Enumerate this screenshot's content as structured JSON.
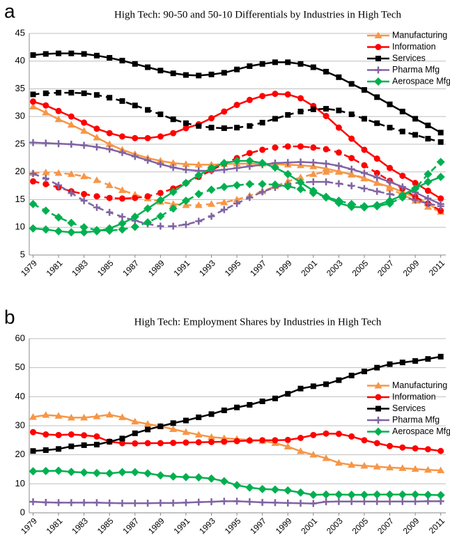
{
  "chart_data": [
    {
      "type": "line",
      "panel_label": "a",
      "title": "High Tech: 90-50 and 50-10 Differentials by Industries in High Tech",
      "x": [
        1979,
        1980,
        1981,
        1982,
        1983,
        1984,
        1985,
        1986,
        1987,
        1988,
        1989,
        1990,
        1991,
        1992,
        1993,
        1994,
        1995,
        1996,
        1997,
        1998,
        1999,
        2000,
        2001,
        2002,
        2003,
        2004,
        2005,
        2006,
        2007,
        2008,
        2009,
        2010,
        2011
      ],
      "xlim": [
        1978.7,
        2011.4
      ],
      "xticks": [
        1979,
        1981,
        1983,
        1985,
        1987,
        1989,
        1991,
        1993,
        1995,
        1997,
        1999,
        2001,
        2003,
        2005,
        2007,
        2009,
        2011
      ],
      "ylim": [
        5,
        45
      ],
      "yticks": [
        5,
        10,
        15,
        20,
        25,
        30,
        35,
        40,
        45
      ],
      "grid": true,
      "legend": "upper right",
      "series": [
        {
          "name": "Manufacturing",
          "color": "#f79646",
          "marker": "triangle",
          "values": [
            31.8,
            30.7,
            29.5,
            28.5,
            27.4,
            26.2,
            25.0,
            24.0,
            23.2,
            22.5,
            22.0,
            21.6,
            21.4,
            21.3,
            21.3,
            21.4,
            21.5,
            21.5,
            21.5,
            21.4,
            21.3,
            21.2,
            21.0,
            20.6,
            20.1,
            19.5,
            18.8,
            18.0,
            17.3,
            16.4,
            15.4,
            14.3,
            12.8
          ],
          "dashed_values": [
            19.8,
            19.9,
            19.8,
            19.6,
            19.2,
            18.5,
            17.6,
            16.7,
            15.9,
            15.2,
            14.6,
            14.2,
            14.0,
            14.0,
            14.2,
            14.5,
            15.0,
            15.7,
            16.5,
            17.4,
            18.3,
            19.0,
            19.6,
            20.0,
            20.0,
            19.6,
            18.9,
            18.0,
            17.0,
            15.9,
            14.8,
            13.7,
            12.8
          ]
        },
        {
          "name": "Information",
          "color": "#ff0000",
          "marker": "circle",
          "values": [
            32.7,
            32.0,
            31.0,
            30.0,
            28.9,
            27.8,
            27.0,
            26.4,
            26.1,
            26.1,
            26.4,
            27.0,
            27.9,
            28.6,
            29.7,
            30.9,
            32.1,
            33.0,
            33.7,
            34.1,
            34.0,
            33.3,
            31.9,
            30.1,
            28.0,
            26.0,
            24.0,
            22.4,
            20.7,
            19.3,
            18.0,
            16.6,
            15.2
          ],
          "dashed_values": [
            18.3,
            17.8,
            17.2,
            16.5,
            16.0,
            15.6,
            15.3,
            15.2,
            15.3,
            15.6,
            16.2,
            17.0,
            18.0,
            19.1,
            20.3,
            21.5,
            22.5,
            23.4,
            24.0,
            24.4,
            24.6,
            24.6,
            24.4,
            24.1,
            23.5,
            22.5,
            21.2,
            19.8,
            18.4,
            17.0,
            15.5,
            14.3,
            13.0
          ]
        },
        {
          "name": "Services",
          "color": "#000000",
          "marker": "square",
          "values": [
            41.1,
            41.3,
            41.4,
            41.4,
            41.3,
            41.0,
            40.6,
            40.1,
            39.5,
            38.9,
            38.3,
            37.8,
            37.5,
            37.4,
            37.6,
            37.9,
            38.5,
            39.1,
            39.5,
            39.8,
            39.8,
            39.5,
            38.9,
            38.1,
            37.1,
            35.9,
            34.8,
            33.5,
            32.2,
            30.9,
            29.6,
            28.4,
            27.1
          ],
          "dashed_values": [
            34.0,
            34.2,
            34.3,
            34.3,
            34.2,
            33.9,
            33.4,
            32.8,
            32.0,
            31.2,
            30.4,
            29.5,
            28.8,
            28.3,
            28.0,
            27.9,
            28.0,
            28.3,
            28.9,
            29.6,
            30.3,
            30.9,
            31.3,
            31.4,
            31.1,
            30.4,
            29.6,
            28.8,
            28.0,
            27.3,
            26.7,
            26.0,
            25.4
          ]
        },
        {
          "name": "Pharma Mfg",
          "color": "#8064a2",
          "marker": "plus",
          "values": [
            25.3,
            25.2,
            25.1,
            25.0,
            24.8,
            24.5,
            24.1,
            23.5,
            22.8,
            22.1,
            21.4,
            20.8,
            20.4,
            20.2,
            20.2,
            20.4,
            20.7,
            21.0,
            21.3,
            21.6,
            21.7,
            21.8,
            21.7,
            21.5,
            21.1,
            20.5,
            19.8,
            19.0,
            18.2,
            17.3,
            16.3,
            15.2,
            14.2
          ],
          "dashed_values": [
            19.7,
            18.8,
            17.6,
            16.2,
            14.8,
            13.6,
            12.7,
            11.9,
            11.2,
            10.6,
            10.2,
            10.2,
            10.5,
            11.1,
            12.0,
            13.2,
            14.3,
            15.4,
            16.4,
            17.2,
            17.8,
            18.1,
            18.2,
            18.2,
            17.9,
            17.5,
            17.0,
            16.5,
            16.0,
            15.5,
            14.9,
            14.3,
            13.8
          ]
        },
        {
          "name": "Aerospace Mfg",
          "color": "#00b050",
          "marker": "diamond",
          "values": [
            9.8,
            9.6,
            9.3,
            9.1,
            9.1,
            9.3,
            9.8,
            10.7,
            11.9,
            13.4,
            14.9,
            16.4,
            18.0,
            19.4,
            20.7,
            21.6,
            22.0,
            22.0,
            21.6,
            20.8,
            19.6,
            18.1,
            16.6,
            15.4,
            14.4,
            13.7,
            13.6,
            14.0,
            14.8,
            15.8,
            17.0,
            18.2,
            19.1
          ],
          "dashed_values": [
            14.2,
            13.0,
            11.8,
            10.8,
            10.0,
            9.5,
            9.4,
            9.6,
            10.1,
            10.9,
            12.0,
            13.4,
            14.8,
            16.0,
            16.8,
            17.3,
            17.6,
            17.8,
            17.8,
            17.7,
            17.4,
            16.9,
            16.2,
            15.5,
            14.8,
            14.2,
            13.8,
            13.8,
            14.3,
            15.4,
            17.0,
            19.6,
            21.8
          ]
        }
      ]
    },
    {
      "type": "line",
      "panel_label": "b",
      "title": "High Tech: Employment Shares by Industries in High Tech",
      "x": [
        1979,
        1980,
        1981,
        1982,
        1983,
        1984,
        1985,
        1986,
        1987,
        1988,
        1989,
        1990,
        1991,
        1992,
        1993,
        1994,
        1995,
        1996,
        1997,
        1998,
        1999,
        2000,
        2001,
        2002,
        2003,
        2004,
        2005,
        2006,
        2007,
        2008,
        2009,
        2010,
        2011
      ],
      "xlim": [
        1978.7,
        2011.4
      ],
      "xticks": [
        1979,
        1981,
        1983,
        1985,
        1987,
        1989,
        1991,
        1993,
        1995,
        1997,
        1999,
        2001,
        2003,
        2005,
        2007,
        2009,
        2011
      ],
      "ylim": [
        0,
        60
      ],
      "yticks": [
        0,
        10,
        20,
        30,
        40,
        50,
        60
      ],
      "grid": true,
      "legend": "right",
      "series": [
        {
          "name": "Manufacturing",
          "color": "#f79646",
          "marker": "triangle",
          "values": [
            33.0,
            33.7,
            33.4,
            32.8,
            32.8,
            33.2,
            33.8,
            32.9,
            31.4,
            30.6,
            29.8,
            28.8,
            27.8,
            26.9,
            26.1,
            25.7,
            25.4,
            25.1,
            24.8,
            24.0,
            22.8,
            21.2,
            20.0,
            18.8,
            17.2,
            16.5,
            16.2,
            15.9,
            15.6,
            15.4,
            15.1,
            14.8,
            14.6
          ]
        },
        {
          "name": "Information",
          "color": "#ff0000",
          "marker": "circle",
          "values": [
            27.8,
            27.0,
            26.8,
            27.0,
            26.7,
            26.3,
            24.5,
            24.0,
            23.9,
            24.0,
            24.0,
            24.1,
            24.2,
            24.3,
            24.4,
            24.5,
            24.7,
            24.9,
            25.0,
            25.0,
            25.1,
            25.8,
            26.8,
            27.3,
            27.2,
            26.3,
            25.0,
            24.0,
            23.0,
            22.5,
            22.2,
            21.9,
            21.3
          ]
        },
        {
          "name": "Services",
          "color": "#000000",
          "marker": "square",
          "values": [
            21.3,
            21.6,
            22.0,
            22.9,
            23.3,
            23.5,
            24.5,
            25.6,
            27.4,
            28.7,
            29.8,
            30.9,
            31.8,
            32.9,
            34.0,
            35.3,
            36.3,
            37.2,
            38.4,
            39.4,
            41.0,
            42.8,
            43.6,
            44.3,
            45.7,
            47.3,
            48.7,
            50.0,
            51.2,
            51.8,
            52.3,
            53.0,
            53.8
          ]
        },
        {
          "name": "Pharma Mfg",
          "color": "#8064a2",
          "marker": "plus",
          "values": [
            3.8,
            3.6,
            3.5,
            3.5,
            3.5,
            3.5,
            3.4,
            3.3,
            3.3,
            3.3,
            3.4,
            3.4,
            3.5,
            3.7,
            3.8,
            4.0,
            4.0,
            3.8,
            3.6,
            3.5,
            3.4,
            3.3,
            3.2,
            3.8,
            3.9,
            3.9,
            3.9,
            3.9,
            3.9,
            3.9,
            3.9,
            4.0,
            4.0
          ]
        },
        {
          "name": "Aerospace Mfg",
          "color": "#00b050",
          "marker": "diamond",
          "values": [
            14.3,
            14.4,
            14.5,
            14.1,
            13.9,
            13.7,
            13.6,
            14.0,
            14.0,
            13.6,
            12.9,
            12.5,
            12.3,
            12.2,
            11.8,
            10.9,
            9.5,
            8.7,
            8.2,
            8.0,
            7.7,
            7.0,
            6.2,
            6.3,
            6.3,
            6.2,
            6.2,
            6.3,
            6.3,
            6.3,
            6.3,
            6.2,
            6.1
          ]
        }
      ]
    }
  ]
}
